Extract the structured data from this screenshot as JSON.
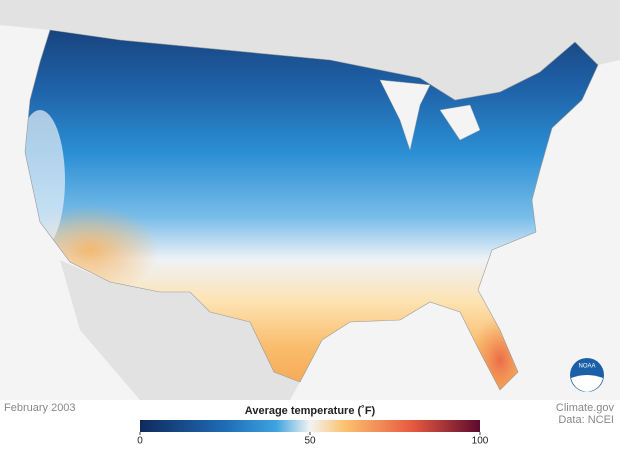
{
  "period": "February 2003",
  "credits": {
    "source": "Climate.gov",
    "data": "Data: NCEI"
  },
  "logo": "NOAA",
  "legend": {
    "title": "Average temperature (˚F)",
    "lim": [
      0,
      100
    ],
    "ticks": [
      0,
      50,
      100
    ]
  }
}
